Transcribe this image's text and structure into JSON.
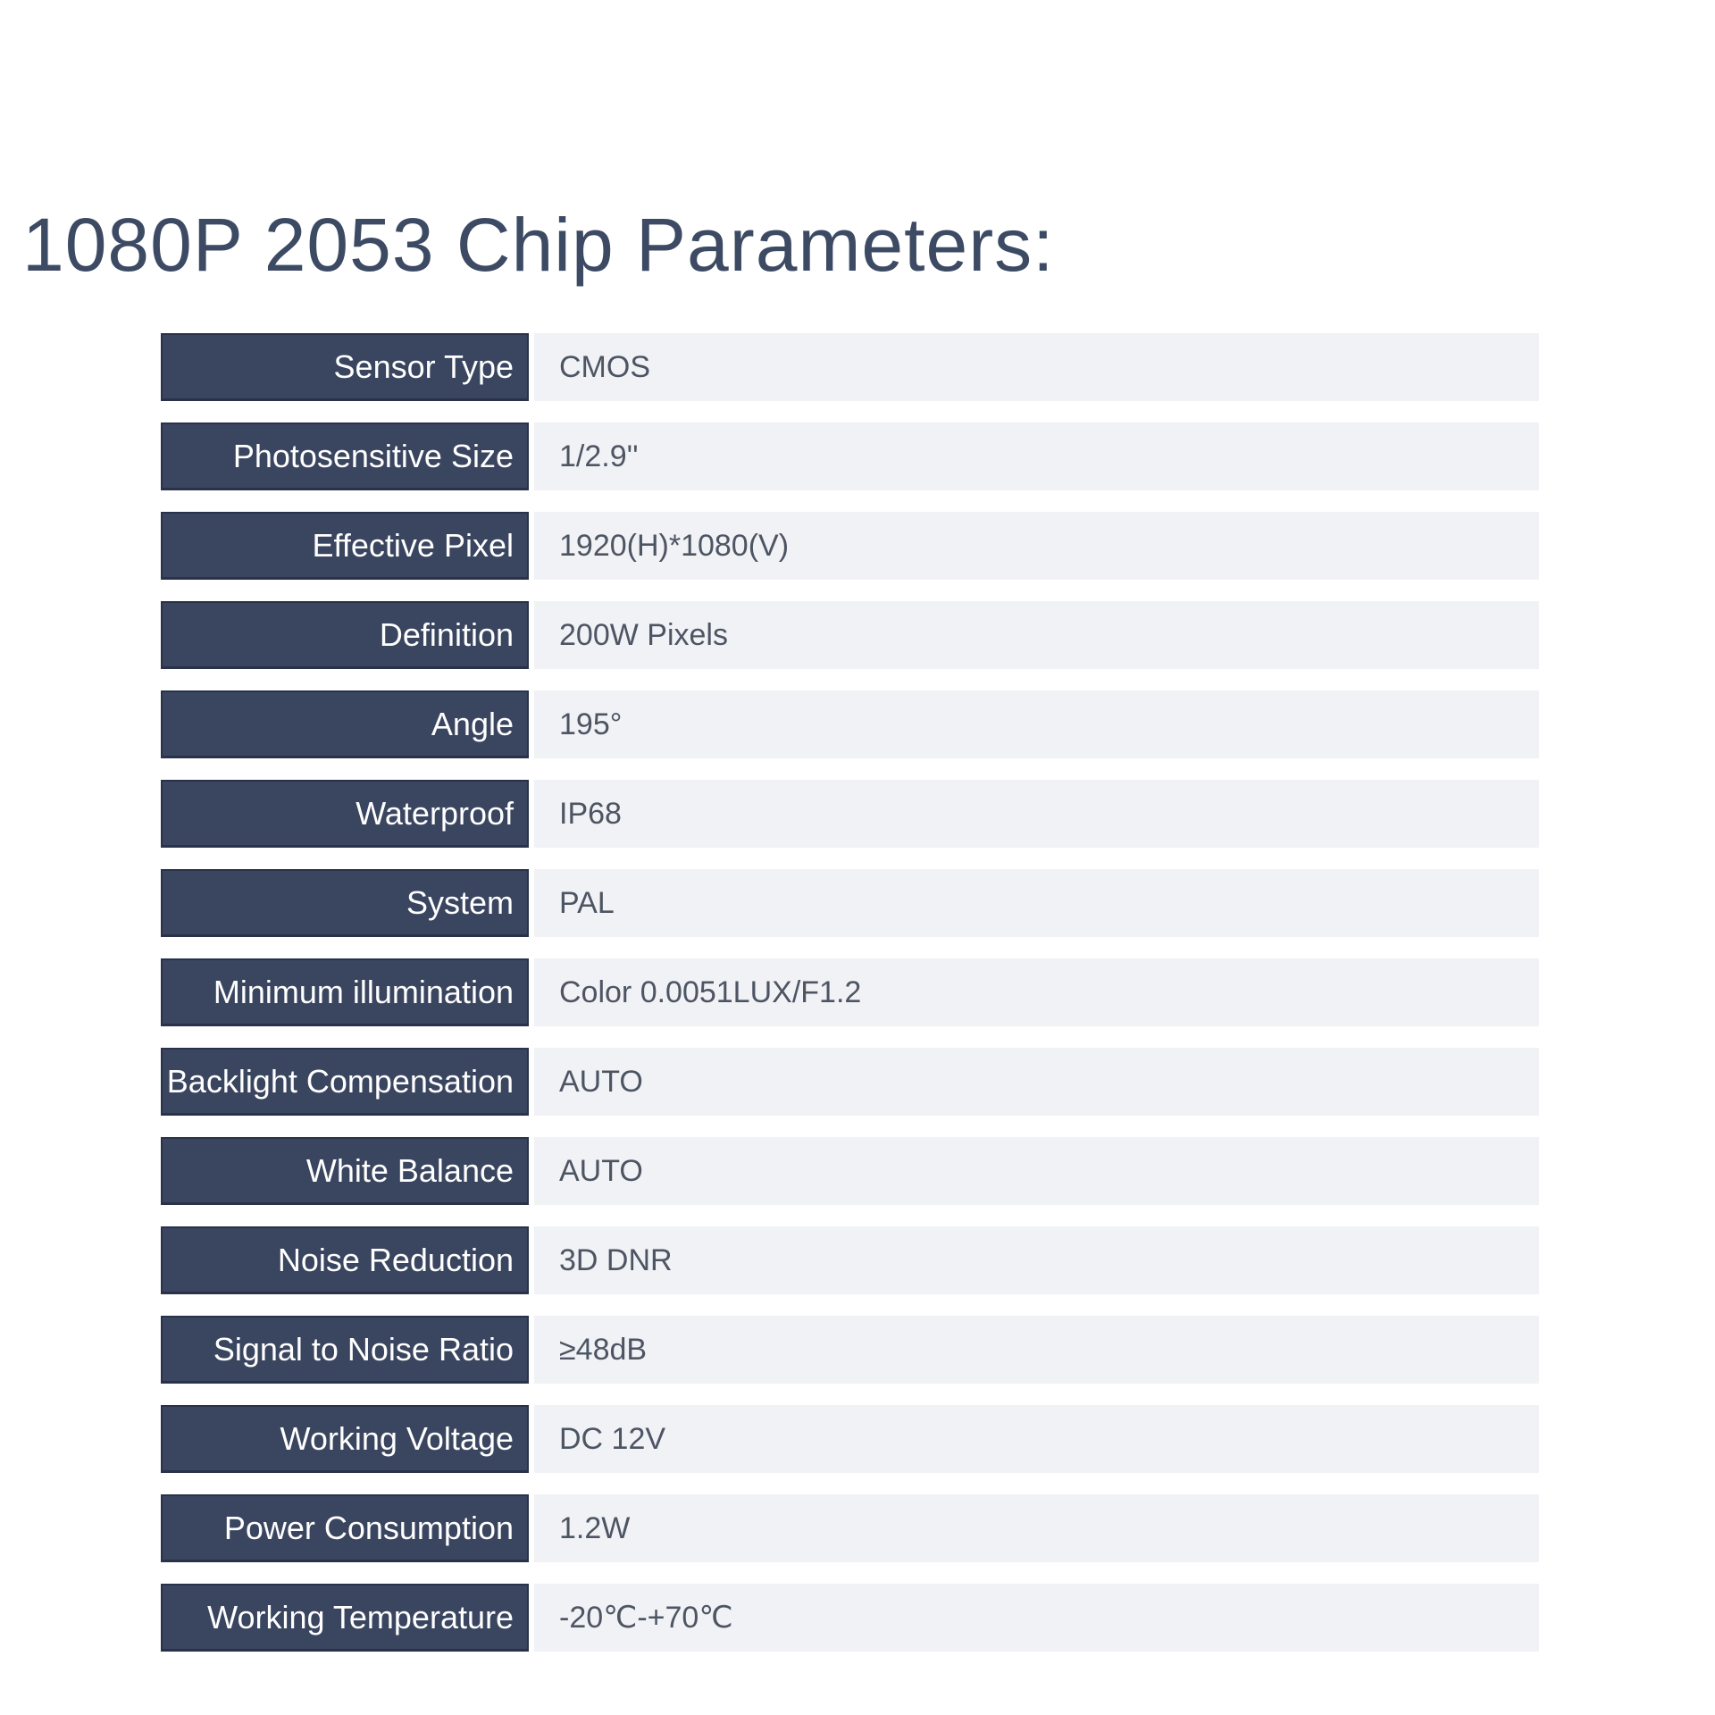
{
  "title": "1080P 2053 Chip Parameters:",
  "colors": {
    "label_bg": "#3A455F",
    "label_border": "#29324A",
    "label_text": "#FFFFFF",
    "value_bg": "#F1F2F6",
    "value_text": "#4D5563",
    "title_text": "#3D4A63",
    "page_bg": "#FFFFFF"
  },
  "table": {
    "rows": [
      {
        "label": "Sensor Type",
        "value": "CMOS"
      },
      {
        "label": "Photosensitive Size",
        "value": "1/2.9''"
      },
      {
        "label": "Effective Pixel",
        "value": "1920(H)*1080(V)"
      },
      {
        "label": "Definition",
        "value": "200W Pixels"
      },
      {
        "label": "Angle",
        "value": "195°"
      },
      {
        "label": "Waterproof",
        "value": "IP68"
      },
      {
        "label": "System",
        "value": "PAL"
      },
      {
        "label": "Minimum illumination",
        "value": "Color 0.0051LUX/F1.2"
      },
      {
        "label": "Backlight Compensation",
        "value": "AUTO"
      },
      {
        "label": "White Balance",
        "value": "AUTO"
      },
      {
        "label": "Noise Reduction",
        "value": "3D DNR"
      },
      {
        "label": "Signal to Noise Ratio",
        "value": "≥48dB"
      },
      {
        "label": "Working Voltage",
        "value": "DC 12V"
      },
      {
        "label": "Power Consumption",
        "value": "1.2W"
      },
      {
        "label": "Working Temperature",
        "value": "-20℃-+70℃"
      }
    ]
  }
}
